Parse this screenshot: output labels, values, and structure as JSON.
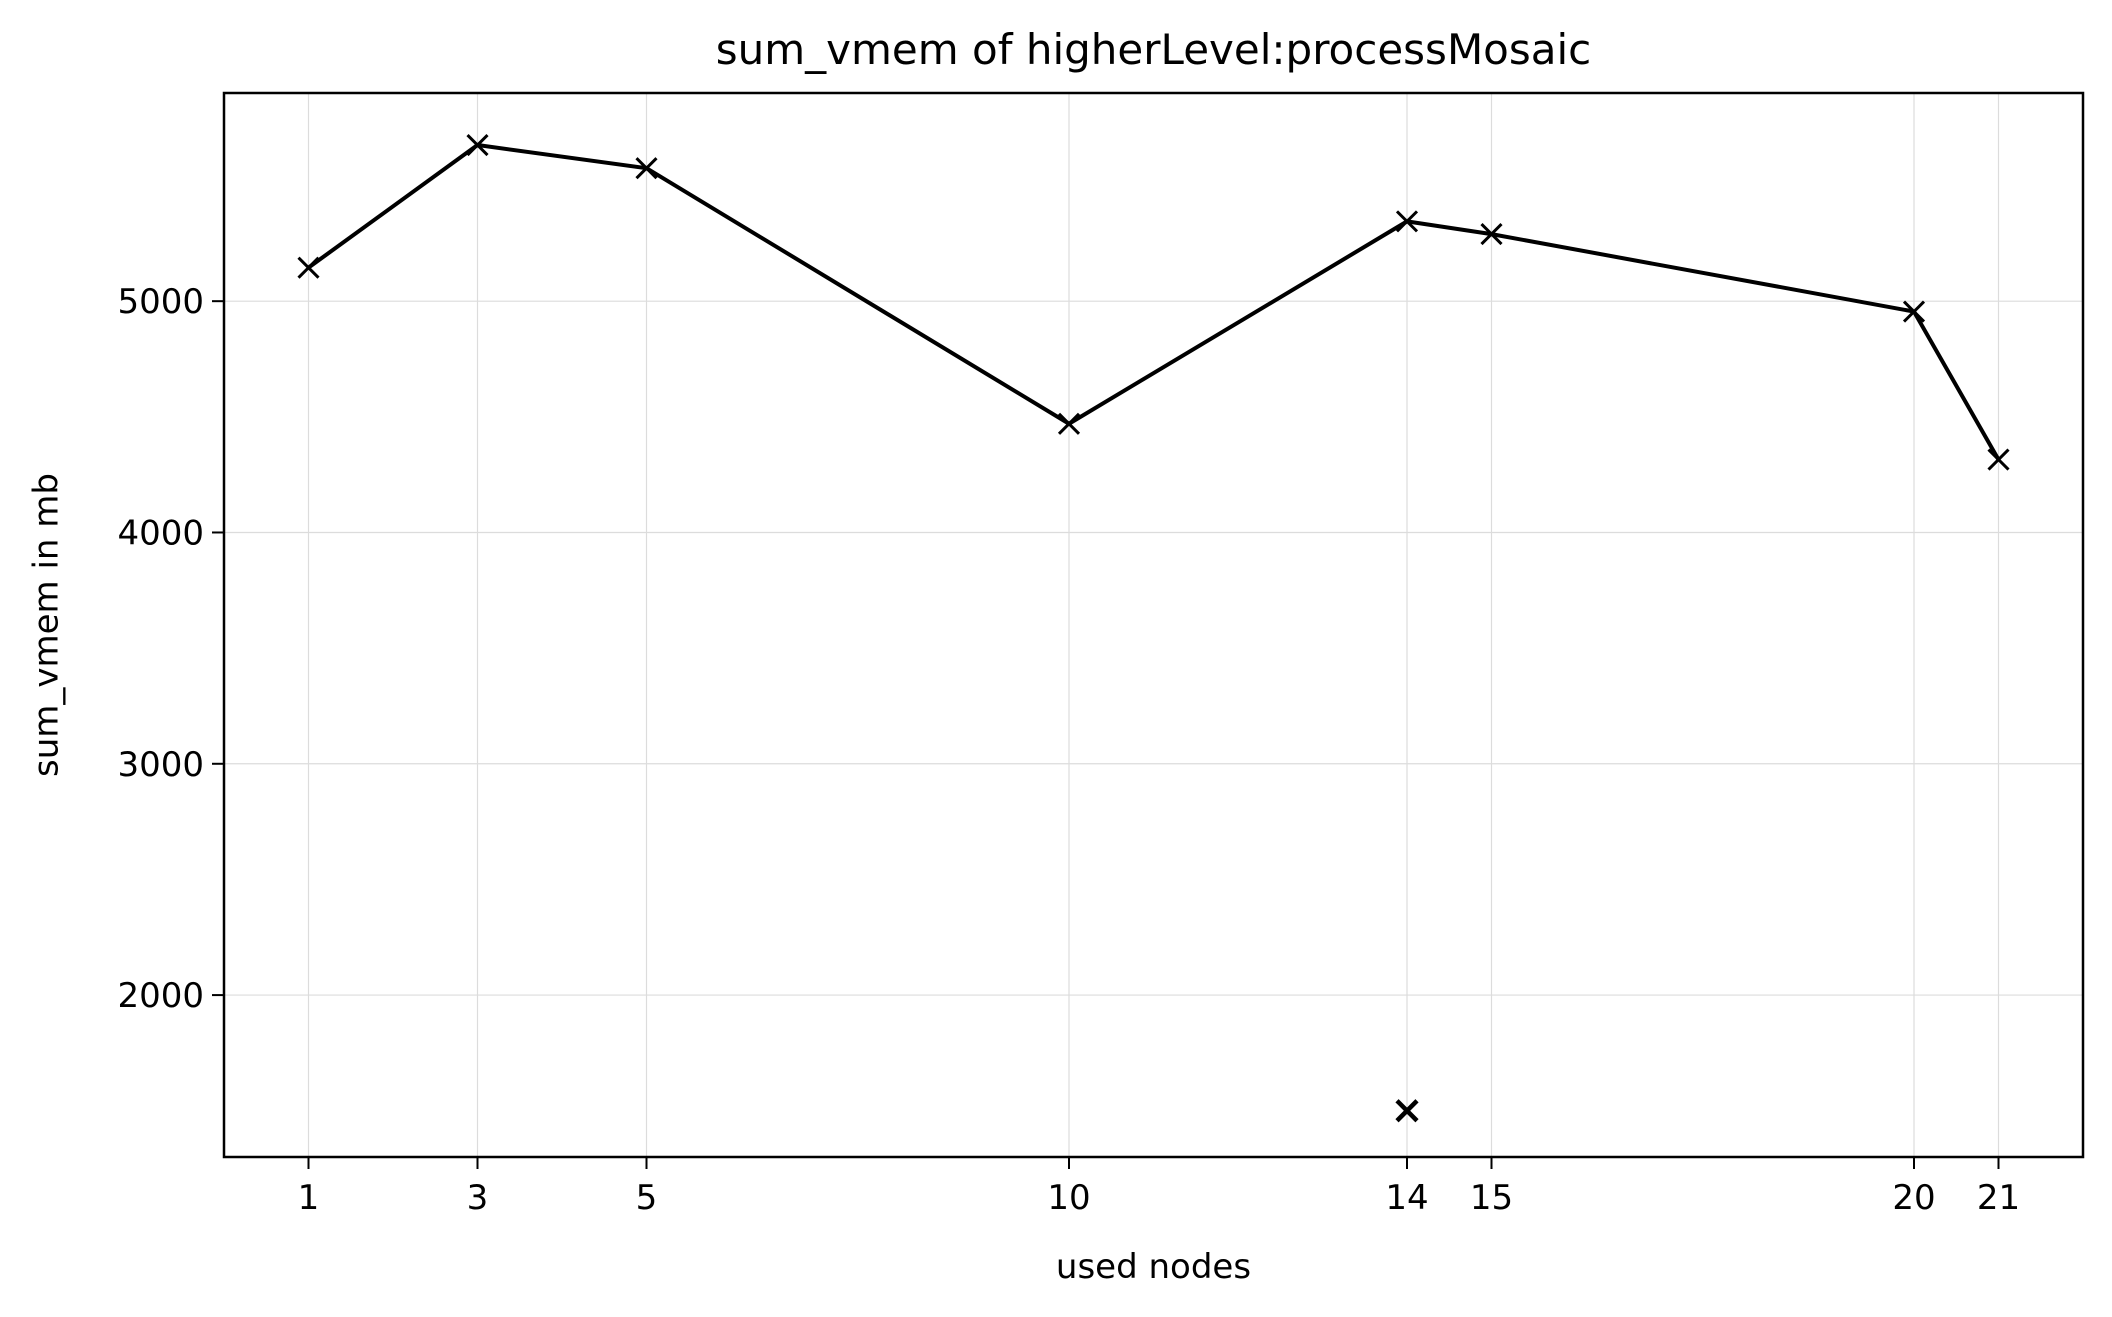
{
  "chart_data": {
    "type": "line",
    "title": "sum_vmem of higherLevel:processMosaic",
    "xlabel": "used nodes",
    "ylabel": "sum_vmem in mb",
    "xlim": [
      0,
      22
    ],
    "ylim": [
      1300,
      5900
    ],
    "x_ticks": [
      1,
      3,
      5,
      10,
      14,
      15,
      20,
      21
    ],
    "y_ticks": [
      2000,
      3000,
      4000,
      5000
    ],
    "grid": true,
    "series": [
      {
        "x": [
          1,
          3,
          5,
          10,
          14,
          15,
          20,
          21
        ],
        "y": [
          5145,
          5675,
          5575,
          4470,
          5345,
          5290,
          4955,
          4315
        ],
        "color": "#000000",
        "marker": "x",
        "line": true
      }
    ],
    "extra_points": [
      {
        "x": 14,
        "y": 1500,
        "marker": "x"
      }
    ]
  }
}
